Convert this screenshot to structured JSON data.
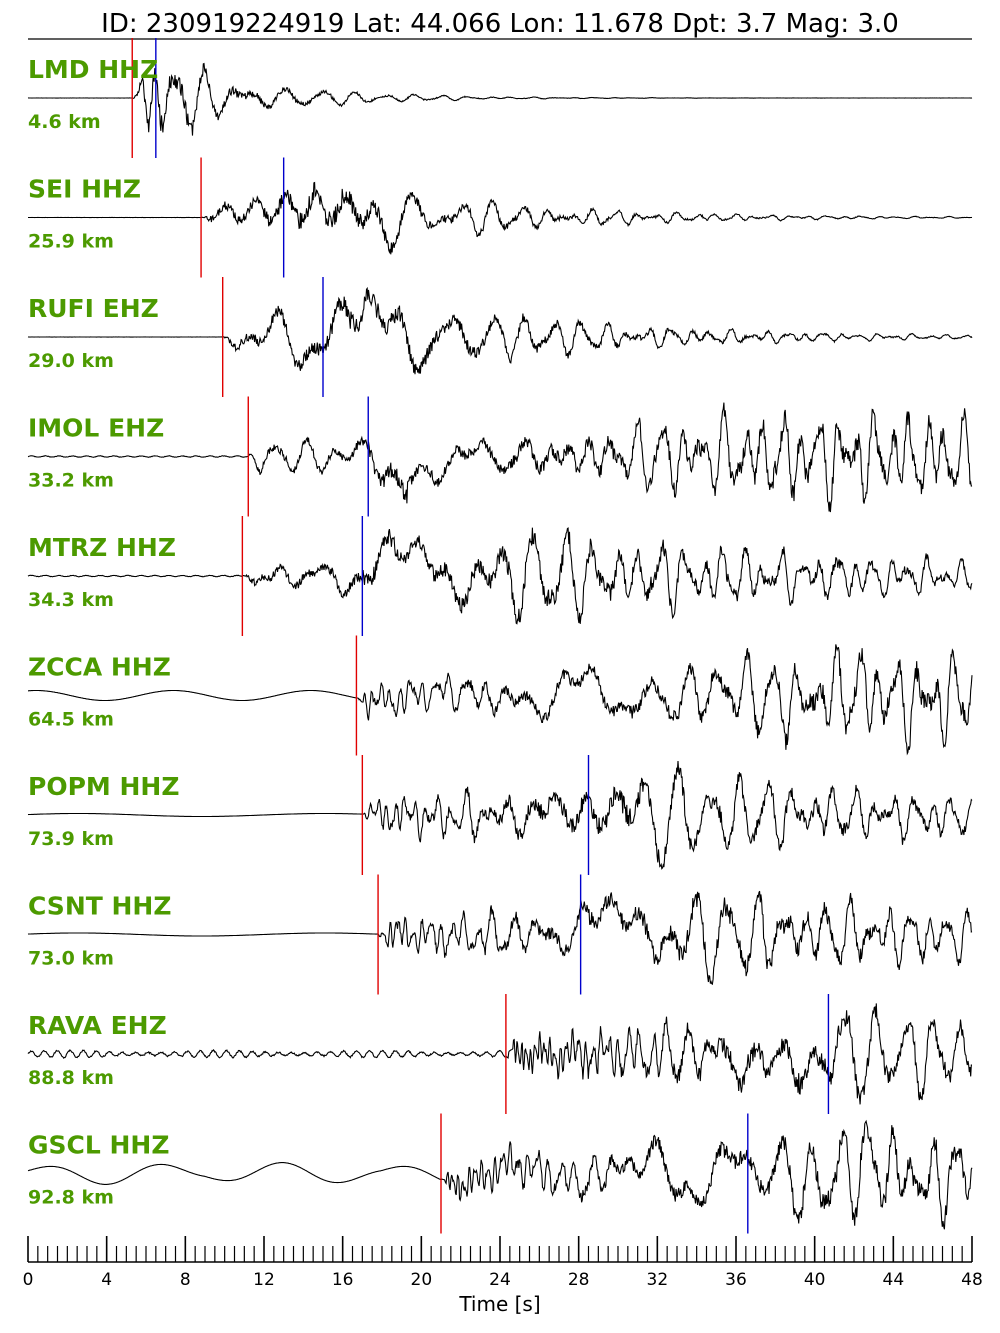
{
  "title": "ID: 230919224919 Lat:  44.066 Lon:  11.678 Dpt:     3.7 Mag:   3.0",
  "chart_data": {
    "type": "line",
    "xlabel": "Time [s]",
    "xlim": [
      0,
      48
    ],
    "xticks": [
      "0",
      "4",
      "8",
      "12",
      "16",
      "20",
      "24",
      "28",
      "32",
      "36",
      "40",
      "44",
      "48"
    ],
    "minor_tick_step": 0.5,
    "colors": {
      "label": "#4c9a00",
      "p_pick": "#e00000",
      "s_pick": "#0000cc",
      "trace": "#000000"
    },
    "series": [
      {
        "name": "LMD HHZ",
        "distance": "4.6 km",
        "p": 5.3,
        "s": 6.5,
        "base": "quiet",
        "peak": 6.2,
        "decay": 5
      },
      {
        "name": "SEI HHZ",
        "distance": "25.9 km",
        "p": 8.8,
        "s": 13.0,
        "base": "quiet",
        "peak": 15.0,
        "decay": 8
      },
      {
        "name": "RUFI EHZ",
        "distance": "29.0 km",
        "p": 9.9,
        "s": 15.0,
        "base": "quiet",
        "peak": 17.0,
        "decay": 10
      },
      {
        "name": "IMOL EHZ",
        "distance": "33.2 km",
        "p": 11.2,
        "s": 17.3,
        "base": "noise",
        "peak": 40.0,
        "decay": 40
      },
      {
        "name": "MTRZ HHZ",
        "distance": "34.3 km",
        "p": 10.9,
        "s": 17.0,
        "base": "noise",
        "peak": 26.0,
        "decay": 20
      },
      {
        "name": "ZCCA HHZ",
        "distance": "64.5 km",
        "p": 16.7,
        "s": null,
        "base": "longwave",
        "peak": 44.0,
        "decay": 40
      },
      {
        "name": "POPM HHZ",
        "distance": "73.9 km",
        "p": 17.0,
        "s": 28.5,
        "base": "slow",
        "peak": 30.5,
        "decay": 20
      },
      {
        "name": "CSNT HHZ",
        "distance": "73.0 km",
        "p": 17.8,
        "s": 28.1,
        "base": "slow",
        "peak": 35.0,
        "decay": 20
      },
      {
        "name": "RAVA EHZ",
        "distance": "88.8 km",
        "p": 24.3,
        "s": 40.7,
        "base": "noisy",
        "peak": 38.0,
        "decay": 30
      },
      {
        "name": "GSCL HHZ",
        "distance": "92.8 km",
        "p": 21.0,
        "s": 36.6,
        "base": "swell",
        "peak": 42.0,
        "decay": 40
      }
    ]
  }
}
